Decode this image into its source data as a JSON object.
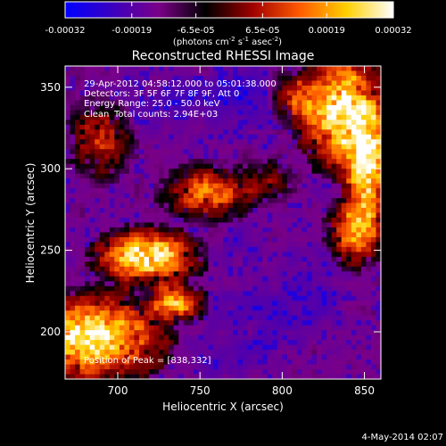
{
  "colorbar": {
    "tick_labels": [
      "-0.00032",
      "-0.00019",
      "-6.5e-05",
      "6.5e-05",
      "0.00019",
      "0.00032"
    ],
    "tick_values": [
      -0.00032,
      -0.00019,
      -6.5e-05,
      6.5e-05,
      0.00019,
      0.00032
    ],
    "range": [
      -0.00032,
      0.00032
    ],
    "unit_main": "(photons cm",
    "unit_exp1": "-2",
    "unit_mid": " s",
    "unit_exp2": "-1",
    "unit_end": " asec",
    "unit_exp3": "-2",
    "unit_close": ")",
    "stops": [
      "#0000ff",
      "#3a00c0",
      "#7a0088",
      "#000000",
      "#a00000",
      "#ff5a00",
      "#ffd000",
      "#ffffff"
    ]
  },
  "chart_data": {
    "type": "heatmap",
    "title": "Reconstructed RHESSI Image",
    "xlabel": "Heliocentric X (arcsec)",
    "ylabel": "Heliocentric Y (arcsec)",
    "xlim": [
      668,
      860
    ],
    "ylim": [
      171,
      363
    ],
    "x_ticks": [
      700,
      750,
      800,
      850
    ],
    "y_ticks": [
      200,
      250,
      300,
      350
    ],
    "x_tick_labels": [
      "700",
      "750",
      "800",
      "850"
    ],
    "y_tick_labels": [
      "200",
      "250",
      "300",
      "350"
    ],
    "peak": [
      838,
      332
    ],
    "bright_regions": [
      {
        "center": [
          686,
          197
        ],
        "extent": [
          34,
          22
        ],
        "level": 1.0
      },
      {
        "center": [
          735,
          218
        ],
        "extent": [
          14,
          10
        ],
        "level": 0.75
      },
      {
        "center": [
          718,
          246
        ],
        "extent": [
          26,
          14
        ],
        "level": 0.95
      },
      {
        "center": [
          755,
          285
        ],
        "extent": [
          22,
          14
        ],
        "level": 0.6
      },
      {
        "center": [
          690,
          318
        ],
        "extent": [
          16,
          20
        ],
        "level": 0.45
      },
      {
        "center": [
          838,
          335
        ],
        "extent": [
          22,
          30
        ],
        "level": 1.0
      },
      {
        "center": [
          852,
          300
        ],
        "extent": [
          12,
          28
        ],
        "level": 0.85
      },
      {
        "center": [
          845,
          262
        ],
        "extent": [
          14,
          18
        ],
        "level": 0.7
      },
      {
        "center": [
          808,
          344
        ],
        "extent": [
          12,
          14
        ],
        "level": 0.45
      },
      {
        "center": [
          790,
          292
        ],
        "extent": [
          14,
          10
        ],
        "level": 0.3
      }
    ],
    "dark_regions": [
      {
        "center": [
          780,
          345
        ],
        "extent": [
          30,
          22
        ],
        "level": 0.75
      },
      {
        "center": [
          735,
          340
        ],
        "extent": [
          40,
          18
        ],
        "level": 0.7
      },
      {
        "center": [
          790,
          205
        ],
        "extent": [
          34,
          24
        ],
        "level": 0.65
      },
      {
        "center": [
          820,
          230
        ],
        "extent": [
          22,
          22
        ],
        "level": 0.55
      },
      {
        "center": [
          760,
          180
        ],
        "extent": [
          26,
          12
        ],
        "level": 0.5
      },
      {
        "center": [
          770,
          255
        ],
        "extent": [
          24,
          14
        ],
        "level": 0.4
      }
    ]
  },
  "annotations": {
    "time_range": "29-Apr-2012 04:58:12.000 to 05:01:38.000",
    "detectors": "Detectors: 3F 5F 6F 7F 8F 9F, Att 0",
    "energy": "Energy Range: 25.0 - 50.0 keV",
    "method": "Clean",
    "counts": "Total counts: 2.94E+03",
    "peak_text": "Position of Peak = [838,332]"
  },
  "footer": {
    "date": "4-May-2014 02:07"
  }
}
